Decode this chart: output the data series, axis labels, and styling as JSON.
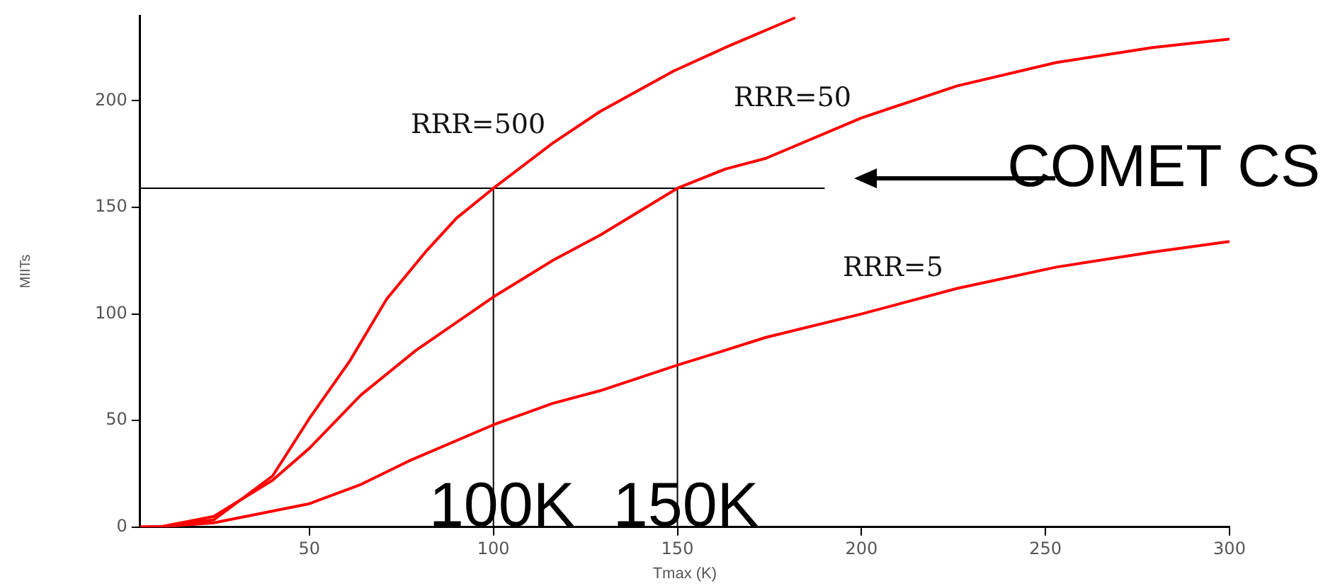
{
  "chart_data": {
    "type": "line",
    "xlabel": "Tmax (K)",
    "ylabel": "MIITs",
    "xlim": [
      4,
      300
    ],
    "xticks": [
      50,
      100,
      150,
      200,
      250,
      300
    ],
    "ylim": [
      0,
      240
    ],
    "yticks": [
      0,
      50,
      100,
      150,
      200
    ],
    "grid": false,
    "legend": false,
    "marker": "none",
    "line_style": "solid",
    "annotations": [
      "COMET CS",
      {
        "text": "100K",
        "x": 100,
        "y": 0
      },
      {
        "text": "150K",
        "x": 150,
        "y": 0
      }
    ],
    "series": [
      {
        "name": "RRR=500",
        "color": "#ff0000",
        "x": [
          4,
          10,
          24,
          40,
          50,
          61,
          71,
          82,
          90,
          100,
          116,
          129,
          149,
          163,
          182
        ],
        "values": [
          0,
          0.3,
          3.4,
          24,
          51,
          78,
          107,
          130,
          145,
          159,
          180,
          195,
          214,
          225,
          239
        ]
      },
      {
        "name": "RRR=50",
        "color": "#ff0000",
        "x": [
          4,
          10,
          24,
          40,
          50,
          64,
          79,
          100,
          116,
          129,
          150,
          163,
          174,
          200,
          226,
          253,
          279,
          300
        ],
        "values": [
          0,
          0.3,
          5,
          22,
          37,
          62,
          83,
          108,
          125,
          137,
          159,
          168,
          173,
          192,
          207,
          218,
          225,
          229
        ]
      },
      {
        "name": "RRR=5",
        "color": "#ff0000",
        "x": [
          4,
          10,
          24,
          50,
          64,
          77,
          100,
          116,
          129,
          150,
          163,
          174,
          200,
          226,
          253,
          279,
          300
        ],
        "values": [
          0,
          0.2,
          2,
          11,
          20,
          31,
          48,
          58,
          64,
          76,
          83,
          89,
          100,
          112,
          122,
          129,
          134
        ]
      },
      {
        "type": "line",
        "color": "#000000",
        "x": [
          4,
          190,
          null,
          100,
          100,
          null,
          150,
          150
        ],
        "values": [
          159,
          159,
          null,
          0,
          159,
          null,
          0,
          159
        ]
      }
    ]
  }
}
